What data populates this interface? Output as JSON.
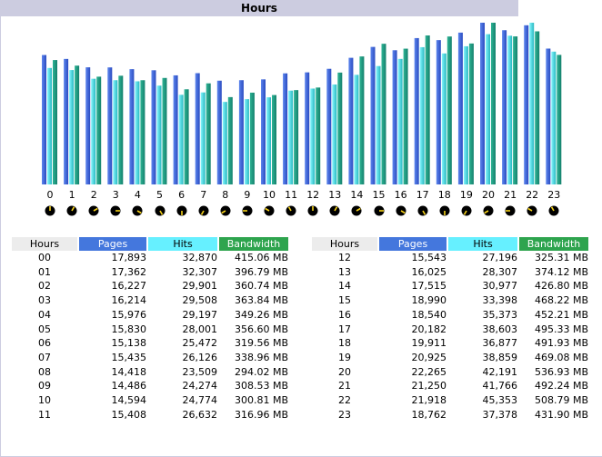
{
  "title": "Hours",
  "columns": {
    "hours": "Hours",
    "pages": "Pages",
    "hits": "Hits",
    "bandwidth": "Bandwidth"
  },
  "colors": {
    "pages": "#4477dd",
    "hits": "#66f0ff",
    "bandwidth": "#2ea44e",
    "title_bg": "#cccce0"
  },
  "chart_data": {
    "type": "bar",
    "categories": [
      "0",
      "1",
      "2",
      "3",
      "4",
      "5",
      "6",
      "7",
      "8",
      "9",
      "10",
      "11",
      "12",
      "13",
      "14",
      "15",
      "16",
      "17",
      "18",
      "19",
      "20",
      "21",
      "22",
      "23"
    ],
    "series": [
      {
        "name": "Pages",
        "values": [
          17893,
          17362,
          16227,
          16214,
          15976,
          15830,
          15138,
          15435,
          14418,
          14486,
          14594,
          15408,
          15543,
          16025,
          17515,
          18990,
          18540,
          20182,
          19911,
          20925,
          22265,
          21250,
          21918,
          18762
        ]
      },
      {
        "name": "Hits",
        "values": [
          32870,
          32307,
          29901,
          29508,
          29197,
          28001,
          25472,
          26126,
          23509,
          24274,
          24774,
          26632,
          27196,
          28307,
          30977,
          33398,
          35373,
          38603,
          36877,
          38859,
          42191,
          41766,
          45353,
          37378
        ]
      },
      {
        "name": "Bandwidth",
        "values": [
          415.06,
          396.79,
          360.74,
          363.84,
          349.26,
          356.6,
          319.56,
          338.96,
          294.02,
          308.53,
          300.81,
          316.96,
          325.31,
          374.12,
          426.8,
          468.22,
          452.21,
          495.33,
          491.93,
          469.08,
          536.93,
          492.24,
          508.79,
          431.9
        ]
      }
    ]
  },
  "table_left": [
    {
      "hour": "00",
      "pages": "17,893",
      "hits": "32,870",
      "bw": "415.06 MB"
    },
    {
      "hour": "01",
      "pages": "17,362",
      "hits": "32,307",
      "bw": "396.79 MB"
    },
    {
      "hour": "02",
      "pages": "16,227",
      "hits": "29,901",
      "bw": "360.74 MB"
    },
    {
      "hour": "03",
      "pages": "16,214",
      "hits": "29,508",
      "bw": "363.84 MB"
    },
    {
      "hour": "04",
      "pages": "15,976",
      "hits": "29,197",
      "bw": "349.26 MB"
    },
    {
      "hour": "05",
      "pages": "15,830",
      "hits": "28,001",
      "bw": "356.60 MB"
    },
    {
      "hour": "06",
      "pages": "15,138",
      "hits": "25,472",
      "bw": "319.56 MB"
    },
    {
      "hour": "07",
      "pages": "15,435",
      "hits": "26,126",
      "bw": "338.96 MB"
    },
    {
      "hour": "08",
      "pages": "14,418",
      "hits": "23,509",
      "bw": "294.02 MB"
    },
    {
      "hour": "09",
      "pages": "14,486",
      "hits": "24,274",
      "bw": "308.53 MB"
    },
    {
      "hour": "10",
      "pages": "14,594",
      "hits": "24,774",
      "bw": "300.81 MB"
    },
    {
      "hour": "11",
      "pages": "15,408",
      "hits": "26,632",
      "bw": "316.96 MB"
    }
  ],
  "table_right": [
    {
      "hour": "12",
      "pages": "15,543",
      "hits": "27,196",
      "bw": "325.31 MB"
    },
    {
      "hour": "13",
      "pages": "16,025",
      "hits": "28,307",
      "bw": "374.12 MB"
    },
    {
      "hour": "14",
      "pages": "17,515",
      "hits": "30,977",
      "bw": "426.80 MB"
    },
    {
      "hour": "15",
      "pages": "18,990",
      "hits": "33,398",
      "bw": "468.22 MB"
    },
    {
      "hour": "16",
      "pages": "18,540",
      "hits": "35,373",
      "bw": "452.21 MB"
    },
    {
      "hour": "17",
      "pages": "20,182",
      "hits": "38,603",
      "bw": "495.33 MB"
    },
    {
      "hour": "18",
      "pages": "19,911",
      "hits": "36,877",
      "bw": "491.93 MB"
    },
    {
      "hour": "19",
      "pages": "20,925",
      "hits": "38,859",
      "bw": "469.08 MB"
    },
    {
      "hour": "20",
      "pages": "22,265",
      "hits": "42,191",
      "bw": "536.93 MB"
    },
    {
      "hour": "21",
      "pages": "21,250",
      "hits": "41,766",
      "bw": "492.24 MB"
    },
    {
      "hour": "22",
      "pages": "21,918",
      "hits": "45,353",
      "bw": "508.79 MB"
    },
    {
      "hour": "23",
      "pages": "18,762",
      "hits": "37,378",
      "bw": "431.90 MB"
    }
  ]
}
